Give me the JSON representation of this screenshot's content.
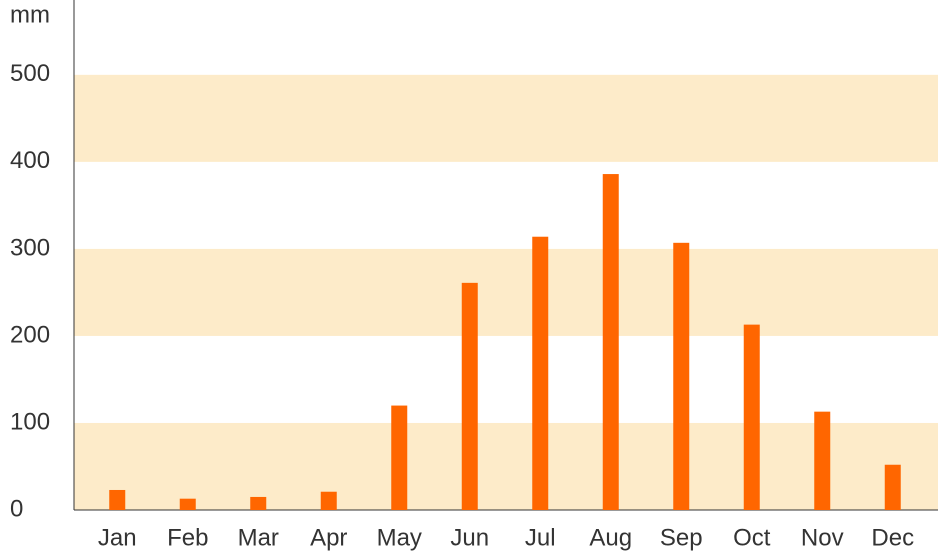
{
  "chart_data": {
    "type": "bar",
    "y_label": "mm",
    "categories": [
      "Jan",
      "Feb",
      "Mar",
      "Apr",
      "May",
      "Jun",
      "Jul",
      "Aug",
      "Sep",
      "Oct",
      "Nov",
      "Dec"
    ],
    "values": [
      23,
      13,
      15,
      21,
      120,
      261,
      314,
      386,
      307,
      213,
      113,
      52
    ],
    "color": "#ff6600",
    "band_color": "#fdebc9",
    "ylim": [
      0,
      586
    ],
    "yticks": [
      0,
      100,
      200,
      300,
      400,
      500
    ],
    "bands": true
  }
}
